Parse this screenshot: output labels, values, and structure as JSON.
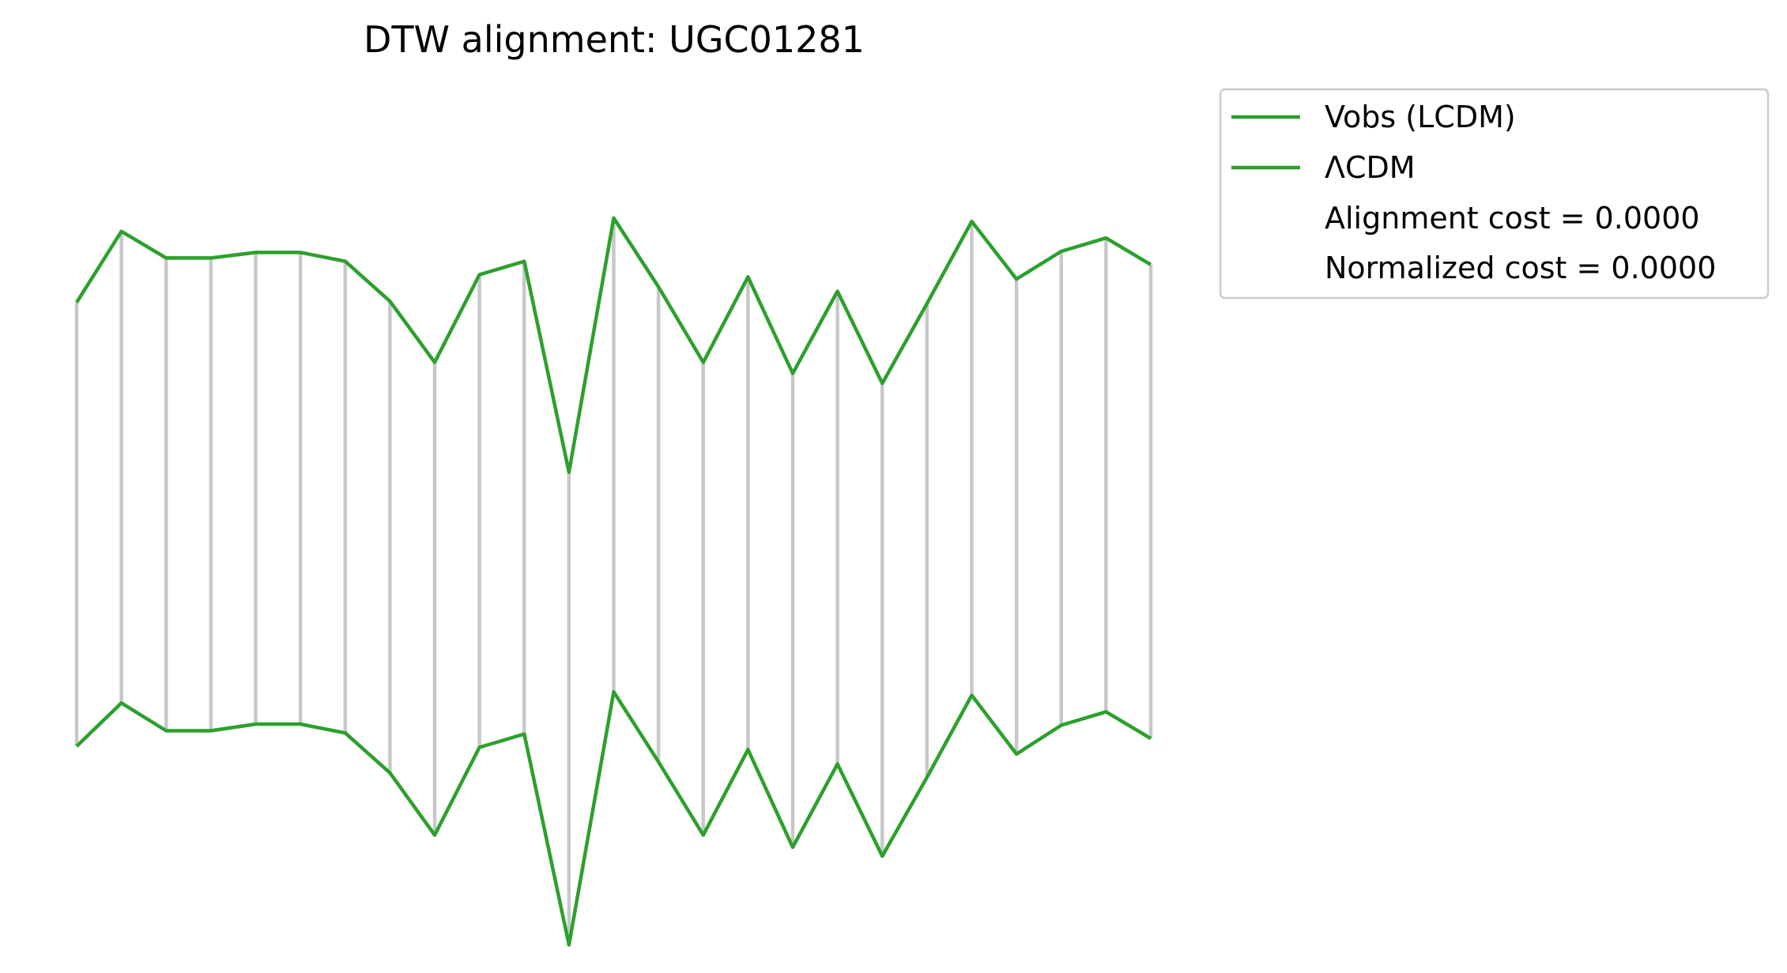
{
  "chart_data": {
    "type": "line",
    "title": "DTW alignment: UGC01281",
    "xlabel": "",
    "ylabel": "",
    "grid": false,
    "axes_visible": false,
    "legend_position": "upper-right-outside",
    "connector_color": "#c8c8c8",
    "x": [
      0,
      1,
      2,
      3,
      4,
      5,
      6,
      7,
      8,
      9,
      10,
      11,
      12,
      13,
      14,
      15,
      16,
      17,
      18,
      19,
      20,
      21,
      22,
      23,
      24
    ],
    "ylim": [
      -4.2,
      3.4
    ],
    "series": [
      {
        "name": "Vobs (LCDM)",
        "color": "#2ca02c",
        "values": [
          1.48,
          2.12,
          1.88,
          1.88,
          1.93,
          1.93,
          1.85,
          1.49,
          0.94,
          1.73,
          1.85,
          -0.05,
          2.24,
          1.62,
          0.94,
          1.71,
          0.84,
          1.58,
          0.75,
          1.47,
          2.21,
          1.69,
          1.94,
          2.06,
          1.82
        ]
      },
      {
        "name": "ΛCDM",
        "color": "#2ca02c",
        "values": [
          -2.52,
          -2.13,
          -2.38,
          -2.38,
          -2.32,
          -2.32,
          -2.4,
          -2.76,
          -3.32,
          -2.53,
          -2.41,
          -4.31,
          -2.03,
          -2.66,
          -3.32,
          -2.55,
          -3.43,
          -2.68,
          -3.51,
          -2.8,
          -2.06,
          -2.59,
          -2.33,
          -2.21,
          -2.45
        ]
      }
    ],
    "annotations": [
      "Alignment cost = 0.0000",
      "Normalized cost = 0.0000"
    ]
  }
}
